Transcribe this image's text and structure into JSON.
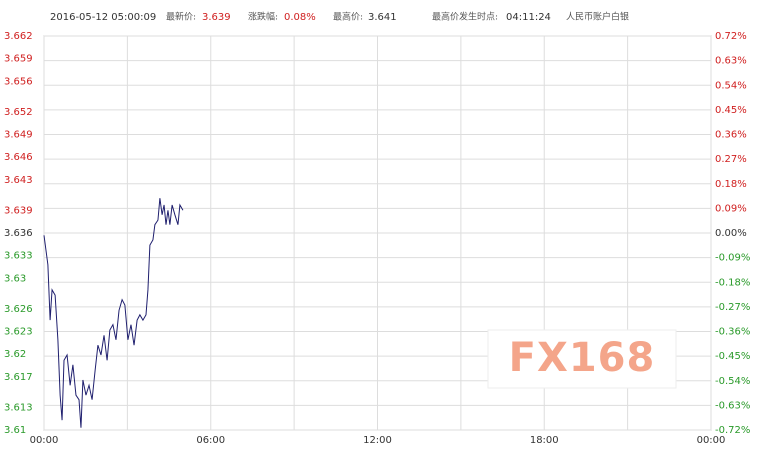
{
  "chart_data": {
    "type": "line",
    "header": {
      "timestamp": "2016-05-12 05:00:09",
      "latest_label": "最新价:",
      "latest": "3.639",
      "change_label": "涨跌幅:",
      "change": "0.08%",
      "high_label": "最高价:",
      "high": "3.641",
      "high_time_label": "最高价发生时点:",
      "high_time": "04:11:24",
      "instrument": "人民币账户白银"
    },
    "watermark": "FX168",
    "xlim": [
      0,
      24
    ],
    "xticks": [
      {
        "value": 0,
        "label": "00:00"
      },
      {
        "value": 6,
        "label": "06:00"
      },
      {
        "value": 12,
        "label": "12:00"
      },
      {
        "value": 18,
        "label": "18:00"
      },
      {
        "value": 24,
        "label": "00:00"
      }
    ],
    "ylim": [
      3.61,
      3.662
    ],
    "yticks": [
      3.662,
      3.659,
      3.656,
      3.652,
      3.649,
      3.646,
      3.643,
      3.639,
      3.636,
      3.633,
      3.63,
      3.626,
      3.623,
      3.62,
      3.617,
      3.613,
      3.61
    ],
    "y2lim": [
      -0.72,
      0.72
    ],
    "y2ticks": [
      {
        "value": 0.72,
        "label": "0.72%"
      },
      {
        "value": 0.63,
        "label": "0.63%"
      },
      {
        "value": 0.54,
        "label": "0.54%"
      },
      {
        "value": 0.45,
        "label": "0.45%"
      },
      {
        "value": 0.36,
        "label": "0.36%"
      },
      {
        "value": 0.27,
        "label": "0.27%"
      },
      {
        "value": 0.18,
        "label": "0.18%"
      },
      {
        "value": 0.09,
        "label": "0.09%"
      },
      {
        "value": 0,
        "label": "0.00%"
      },
      {
        "value": -0.09,
        "label": "-0.09%"
      },
      {
        "value": -0.18,
        "label": "-0.18%"
      },
      {
        "value": -0.27,
        "label": "-0.27%"
      },
      {
        "value": -0.36,
        "label": "-0.36%"
      },
      {
        "value": -0.45,
        "label": "-0.45%"
      },
      {
        "value": -0.54,
        "label": "-0.54%"
      },
      {
        "value": -0.63,
        "label": "-0.63%"
      },
      {
        "value": -0.72,
        "label": "-0.72%"
      }
    ],
    "grid": true,
    "series": [
      {
        "color": "#1f1f6e",
        "x": [
          0,
          0.14,
          0.22,
          0.29,
          0.4,
          0.5,
          0.58,
          0.65,
          0.72,
          0.83,
          0.94,
          1.04,
          1.15,
          1.26,
          1.33,
          1.4,
          1.51,
          1.62,
          1.73,
          1.84,
          1.94,
          2.05,
          2.16,
          2.27,
          2.37,
          2.48,
          2.59,
          2.7,
          2.81,
          2.91,
          3.02,
          3.13,
          3.24,
          3.35,
          3.45,
          3.56,
          3.67,
          3.74,
          3.81,
          3.92,
          3.99,
          4.1,
          4.17,
          4.25,
          4.32,
          4.39,
          4.46,
          4.53,
          4.61,
          4.71,
          4.82,
          4.89,
          5.0
        ],
        "values": [
          3.6357,
          3.6318,
          3.6245,
          3.6285,
          3.6278,
          3.6219,
          3.6146,
          3.6113,
          3.6192,
          3.6199,
          3.6159,
          3.6186,
          3.6146,
          3.614,
          3.6103,
          3.6166,
          3.6146,
          3.6159,
          3.614,
          3.6179,
          3.6212,
          3.6199,
          3.6225,
          3.6192,
          3.6232,
          3.6239,
          3.6219,
          3.6258,
          3.6272,
          3.6265,
          3.6219,
          3.6239,
          3.6212,
          3.6245,
          3.6252,
          3.6245,
          3.6252,
          3.6285,
          3.6344,
          3.6351,
          3.6371,
          3.6377,
          3.6406,
          3.6384,
          3.6397,
          3.6371,
          3.639,
          3.6371,
          3.6397,
          3.6384,
          3.6371,
          3.6397,
          3.639
        ]
      }
    ]
  }
}
